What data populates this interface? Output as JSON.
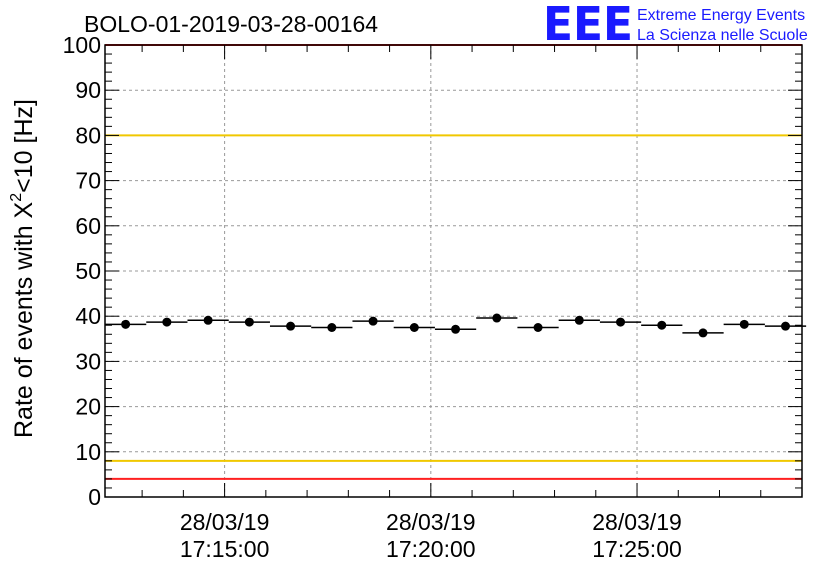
{
  "chart_data": {
    "type": "scatter",
    "title": "BOLO-01-2019-03-28-00164",
    "ylabel_prefix": "Rate of events with X",
    "ylabel_sup": "2",
    "ylabel_suffix": "<10 [Hz]",
    "xlabel": "",
    "ylim": [
      0,
      100
    ],
    "yticks": [
      "0",
      "10",
      "20",
      "30",
      "40",
      "50",
      "60",
      "70",
      "80",
      "90",
      "100"
    ],
    "xlim_minutes": [
      0,
      16.9
    ],
    "xticks": [
      {
        "t": 2.9,
        "date": "28/03/19",
        "time": "17:15:00"
      },
      {
        "t": 7.9,
        "date": "28/03/19",
        "time": "17:20:00"
      },
      {
        "t": 12.9,
        "date": "28/03/19",
        "time": "17:25:00"
      }
    ],
    "bin_width_minutes": 1.0,
    "x": [
      0.5,
      1.5,
      2.5,
      3.5,
      4.5,
      5.5,
      6.5,
      7.5,
      8.5,
      9.5,
      10.5,
      11.5,
      12.5,
      13.5,
      14.5,
      15.5,
      16.5
    ],
    "values": [
      38.2,
      38.7,
      39.1,
      38.7,
      37.8,
      37.5,
      38.9,
      37.5,
      37.1,
      39.6,
      37.5,
      39.1,
      38.7,
      38.0,
      36.3,
      38.2,
      37.8
    ],
    "reference_lines": [
      {
        "value": 100,
        "color": "#ff2020"
      },
      {
        "value": 80,
        "color": "#f0c800"
      },
      {
        "value": 8,
        "color": "#f0c800"
      },
      {
        "value": 4,
        "color": "#ff2020"
      }
    ]
  },
  "logo": {
    "letters": "EEE",
    "line1": "Extreme Energy Events",
    "line2": "La Scienza nelle Scuole"
  },
  "colors": {
    "marker": "#000000",
    "grid": "#999999",
    "logo": "#1a1aff"
  }
}
